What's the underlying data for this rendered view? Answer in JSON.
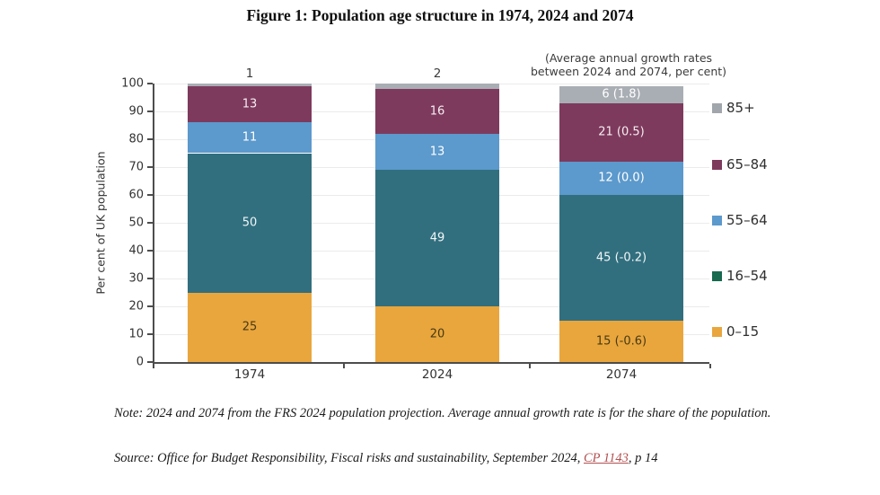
{
  "figure": {
    "title": "Figure 1: Population age structure in 1974, 2024 and 2074",
    "annotation_line1": "(Average annual growth rates",
    "annotation_line2": "between 2024 and 2074, per cent)",
    "note": "Note: 2024 and 2074 from the FRS 2024 population projection. Average annual growth rate is for the share of the population.",
    "source_prefix": "Source: Office for Budget Responsibility, Fiscal risks and sustainability, September 2024, ",
    "source_link": "CP 1143",
    "source_suffix": ", p 14"
  },
  "chart_data": {
    "type": "bar",
    "stacked": true,
    "title": "Figure 1: Population age structure in 1974, 2024 and 2074",
    "categories": [
      "1974",
      "2024",
      "2074"
    ],
    "series": [
      {
        "name": "0–15",
        "key": "0-15",
        "color": "#E9A63D",
        "legend_color": "#E9A63D",
        "label_color": "#473a13",
        "values": [
          25,
          20,
          15
        ],
        "growth_rates": [
          null,
          null,
          "-0.6"
        ]
      },
      {
        "name": "16–54",
        "key": "16-54",
        "color": "#316F7F",
        "legend_color": "#17694F",
        "label_color": "#f2f6f7",
        "values": [
          50,
          49,
          45
        ],
        "growth_rates": [
          null,
          null,
          "-0.2"
        ]
      },
      {
        "name": "55–64",
        "key": "55-64",
        "color": "#5C99CC",
        "legend_color": "#5C99CC",
        "label_color": "#ffffff",
        "values": [
          11,
          13,
          12
        ],
        "growth_rates": [
          null,
          null,
          "0.0"
        ]
      },
      {
        "name": "65–84",
        "key": "65-84",
        "color": "#7E3A5D",
        "legend_color": "#7E3A5D",
        "label_color": "#f5eef2",
        "values": [
          13,
          16,
          21
        ],
        "growth_rates": [
          null,
          null,
          "0.5"
        ]
      },
      {
        "name": "85+",
        "key": "85plus",
        "color": "#A9AEB4",
        "legend_color": "#A0A6AC",
        "label_color": "#ffffff",
        "values": [
          1,
          2,
          6
        ],
        "growth_rates": [
          null,
          null,
          "1.8"
        ]
      }
    ],
    "above_bar_labels": [
      "1",
      "2",
      null
    ],
    "xlabel": "",
    "ylabel": "Per cent of UK population",
    "ylim": [
      0,
      100
    ],
    "yticks": [
      0,
      10,
      20,
      30,
      40,
      50,
      60,
      70,
      80,
      90,
      100
    ],
    "grid": true,
    "legend_position": "right",
    "annotation": "(Average annual growth rates between 2024 and 2074, per cent)"
  }
}
